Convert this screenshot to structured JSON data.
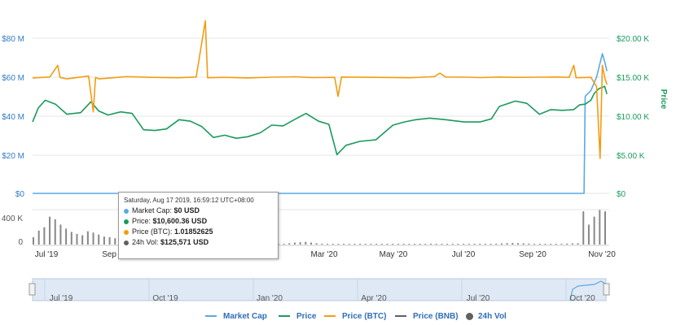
{
  "chart_data": {
    "type": "line",
    "title": "",
    "ylabel_right": "Price",
    "x_ticks": [
      "Jul '19",
      "Sep '19",
      "Nov '19",
      "Jan '20",
      "Mar '20",
      "May '20",
      "Jul '20",
      "Sep '20",
      "Nov '20"
    ],
    "navigator_ticks": [
      "Jul '19",
      "Oct '19",
      "Jan '20",
      "Apr '20",
      "Jul '20",
      "Oct '20"
    ],
    "y_left_ticks": [
      "$80 M",
      "$60 M",
      "$40 M",
      "$20 M",
      "$0"
    ],
    "y_right_ticks": [
      "$20.00 K",
      "$15.00 K",
      "$10.00 K",
      "$5.00 K",
      "$0"
    ],
    "volume_ticks": [
      "400 K",
      "0"
    ],
    "y_left_range": [
      0,
      80000000
    ],
    "y_right_range": [
      0,
      20000
    ],
    "x_range": [
      "2019-06-20",
      "2020-11-05"
    ],
    "series": [
      {
        "name": "Market Cap",
        "color": "#5aa9e6",
        "axis": "left",
        "points": [
          [
            "2019-06-20",
            0
          ],
          [
            "2019-09-01",
            0
          ],
          [
            "2019-12-01",
            0
          ],
          [
            "2020-03-01",
            0
          ],
          [
            "2020-06-01",
            0
          ],
          [
            "2020-09-01",
            0
          ],
          [
            "2020-10-14",
            0
          ],
          [
            "2020-10-15",
            50000000
          ],
          [
            "2020-10-20",
            53000000
          ],
          [
            "2020-10-25",
            60000000
          ],
          [
            "2020-10-30",
            72000000
          ],
          [
            "2020-11-01",
            68000000
          ],
          [
            "2020-11-03",
            63000000
          ]
        ]
      },
      {
        "name": "Price",
        "color": "#1a9a5c",
        "axis": "right",
        "points": [
          [
            "2019-06-20",
            9200
          ],
          [
            "2019-06-25",
            11000
          ],
          [
            "2019-07-01",
            12000
          ],
          [
            "2019-07-10",
            11500
          ],
          [
            "2019-07-20",
            10200
          ],
          [
            "2019-08-01",
            10400
          ],
          [
            "2019-08-10",
            11800
          ],
          [
            "2019-08-17",
            10600
          ],
          [
            "2019-08-25",
            10100
          ],
          [
            "2019-09-05",
            10500
          ],
          [
            "2019-09-15",
            10300
          ],
          [
            "2019-09-25",
            8200
          ],
          [
            "2019-10-05",
            8100
          ],
          [
            "2019-10-15",
            8300
          ],
          [
            "2019-10-26",
            9500
          ],
          [
            "2019-11-05",
            9300
          ],
          [
            "2019-11-15",
            8600
          ],
          [
            "2019-11-25",
            7200
          ],
          [
            "2019-12-05",
            7500
          ],
          [
            "2019-12-15",
            7100
          ],
          [
            "2019-12-25",
            7300
          ],
          [
            "2020-01-05",
            7800
          ],
          [
            "2020-01-15",
            8800
          ],
          [
            "2020-01-25",
            8700
          ],
          [
            "2020-02-05",
            9600
          ],
          [
            "2020-02-14",
            10300
          ],
          [
            "2020-02-25",
            9300
          ],
          [
            "2020-03-05",
            8900
          ],
          [
            "2020-03-12",
            5000
          ],
          [
            "2020-03-20",
            6200
          ],
          [
            "2020-04-01",
            6700
          ],
          [
            "2020-04-15",
            6900
          ],
          [
            "2020-04-30",
            8800
          ],
          [
            "2020-05-10",
            9200
          ],
          [
            "2020-05-20",
            9500
          ],
          [
            "2020-06-01",
            9700
          ],
          [
            "2020-06-15",
            9500
          ],
          [
            "2020-07-01",
            9200
          ],
          [
            "2020-07-15",
            9200
          ],
          [
            "2020-07-25",
            9600
          ],
          [
            "2020-08-01",
            11200
          ],
          [
            "2020-08-15",
            11900
          ],
          [
            "2020-08-25",
            11600
          ],
          [
            "2020-09-05",
            10200
          ],
          [
            "2020-09-15",
            10800
          ],
          [
            "2020-09-25",
            10700
          ],
          [
            "2020-10-05",
            10800
          ],
          [
            "2020-10-10",
            11400
          ],
          [
            "2020-10-15",
            11500
          ],
          [
            "2020-10-20",
            12000
          ],
          [
            "2020-10-23",
            12900
          ],
          [
            "2020-10-27",
            13500
          ],
          [
            "2020-11-01",
            13800
          ],
          [
            "2020-11-03",
            12800
          ]
        ]
      },
      {
        "name": "Price (BTC)",
        "color": "#f39c12",
        "axis": "left",
        "points": [
          [
            "2019-06-20",
            59500000
          ],
          [
            "2019-07-05",
            60000000
          ],
          [
            "2019-07-12",
            66000000
          ],
          [
            "2019-07-14",
            59800000
          ],
          [
            "2019-07-20",
            59000000
          ],
          [
            "2019-08-08",
            60500000
          ],
          [
            "2019-08-12",
            42000000
          ],
          [
            "2019-08-14",
            59800000
          ],
          [
            "2019-08-17",
            59000000
          ],
          [
            "2019-09-10",
            60200000
          ],
          [
            "2019-10-01",
            59800000
          ],
          [
            "2019-10-25",
            59600000
          ],
          [
            "2019-11-10",
            60000000
          ],
          [
            "2019-11-18",
            89000000
          ],
          [
            "2019-11-20",
            59600000
          ],
          [
            "2019-12-05",
            59800000
          ],
          [
            "2019-12-25",
            59500000
          ],
          [
            "2020-01-15",
            59900000
          ],
          [
            "2020-02-05",
            60100000
          ],
          [
            "2020-02-20",
            59700000
          ],
          [
            "2020-03-10",
            59800000
          ],
          [
            "2020-03-13",
            50000000
          ],
          [
            "2020-03-16",
            60000000
          ],
          [
            "2020-04-15",
            59800000
          ],
          [
            "2020-05-15",
            59600000
          ],
          [
            "2020-06-05",
            60200000
          ],
          [
            "2020-06-10",
            62000000
          ],
          [
            "2020-06-15",
            60000000
          ],
          [
            "2020-07-05",
            59900000
          ],
          [
            "2020-07-15",
            59700000
          ],
          [
            "2020-08-01",
            60000000
          ],
          [
            "2020-08-15",
            59800000
          ],
          [
            "2020-09-05",
            59900000
          ],
          [
            "2020-09-20",
            60000000
          ],
          [
            "2020-10-01",
            59800000
          ],
          [
            "2020-10-05",
            66000000
          ],
          [
            "2020-10-07",
            59600000
          ],
          [
            "2020-10-20",
            59800000
          ],
          [
            "2020-10-25",
            55000000
          ],
          [
            "2020-10-28",
            18000000
          ],
          [
            "2020-10-30",
            66000000
          ],
          [
            "2020-11-01",
            60000000
          ],
          [
            "2020-11-03",
            56000000
          ]
        ]
      }
    ],
    "volume_series": {
      "name": "24h Vol",
      "color": "#606060",
      "values_k": [
        110,
        210,
        260,
        420,
        380,
        300,
        240,
        190,
        160,
        140,
        200,
        180,
        150,
        120,
        110,
        95,
        90,
        85,
        100,
        120,
        130,
        110,
        90,
        80,
        70,
        60,
        50,
        40,
        30,
        20,
        15,
        10,
        8,
        6,
        5,
        5,
        6,
        8,
        10,
        12,
        10,
        8,
        6,
        5,
        5,
        5,
        10,
        20,
        30,
        35,
        40,
        30,
        20,
        15,
        10,
        8,
        6,
        5,
        6,
        8,
        10,
        12,
        10,
        8,
        6,
        5,
        4,
        4,
        5,
        6,
        8,
        10,
        12,
        14,
        12,
        10,
        9,
        8,
        7,
        6,
        6,
        7,
        8,
        10,
        12,
        14,
        18,
        22,
        25,
        22,
        18,
        15,
        12,
        10,
        8,
        8,
        10,
        12,
        15,
        18,
        20,
        500,
        300,
        420,
        520,
        500
      ]
    },
    "bnb_series": {
      "name": "Price (BNB)",
      "color": "#555555"
    }
  },
  "tooltip": {
    "date": "Saturday, Aug 17 2019, 16:59:12 UTC+08:00",
    "rows": [
      {
        "label": "Market Cap:",
        "value": "$0 USD",
        "color": "#5aa9e6"
      },
      {
        "label": "Price:",
        "value": "$10,600.36 USD",
        "color": "#1a9a5c"
      },
      {
        "label": "Price (BTC):",
        "value": "1.01852625",
        "color": "#f39c12"
      },
      {
        "label": "24h Vol:",
        "value": "$125,571 USD",
        "color": "#606060"
      }
    ]
  },
  "legend": [
    {
      "label": "Market Cap",
      "color": "#5aa9e6",
      "kind": "line"
    },
    {
      "label": "Price",
      "color": "#1a9a5c",
      "kind": "line"
    },
    {
      "label": "Price (BTC)",
      "color": "#f39c12",
      "kind": "line"
    },
    {
      "label": "Price (BNB)",
      "color": "#606060",
      "kind": "line"
    },
    {
      "label": "24h Vol",
      "color": "#606060",
      "kind": "dot"
    }
  ],
  "colors": {
    "left_axis": "#2f7bc4",
    "right_axis": "#1a9a5c",
    "grid": "#e6e6e6"
  }
}
